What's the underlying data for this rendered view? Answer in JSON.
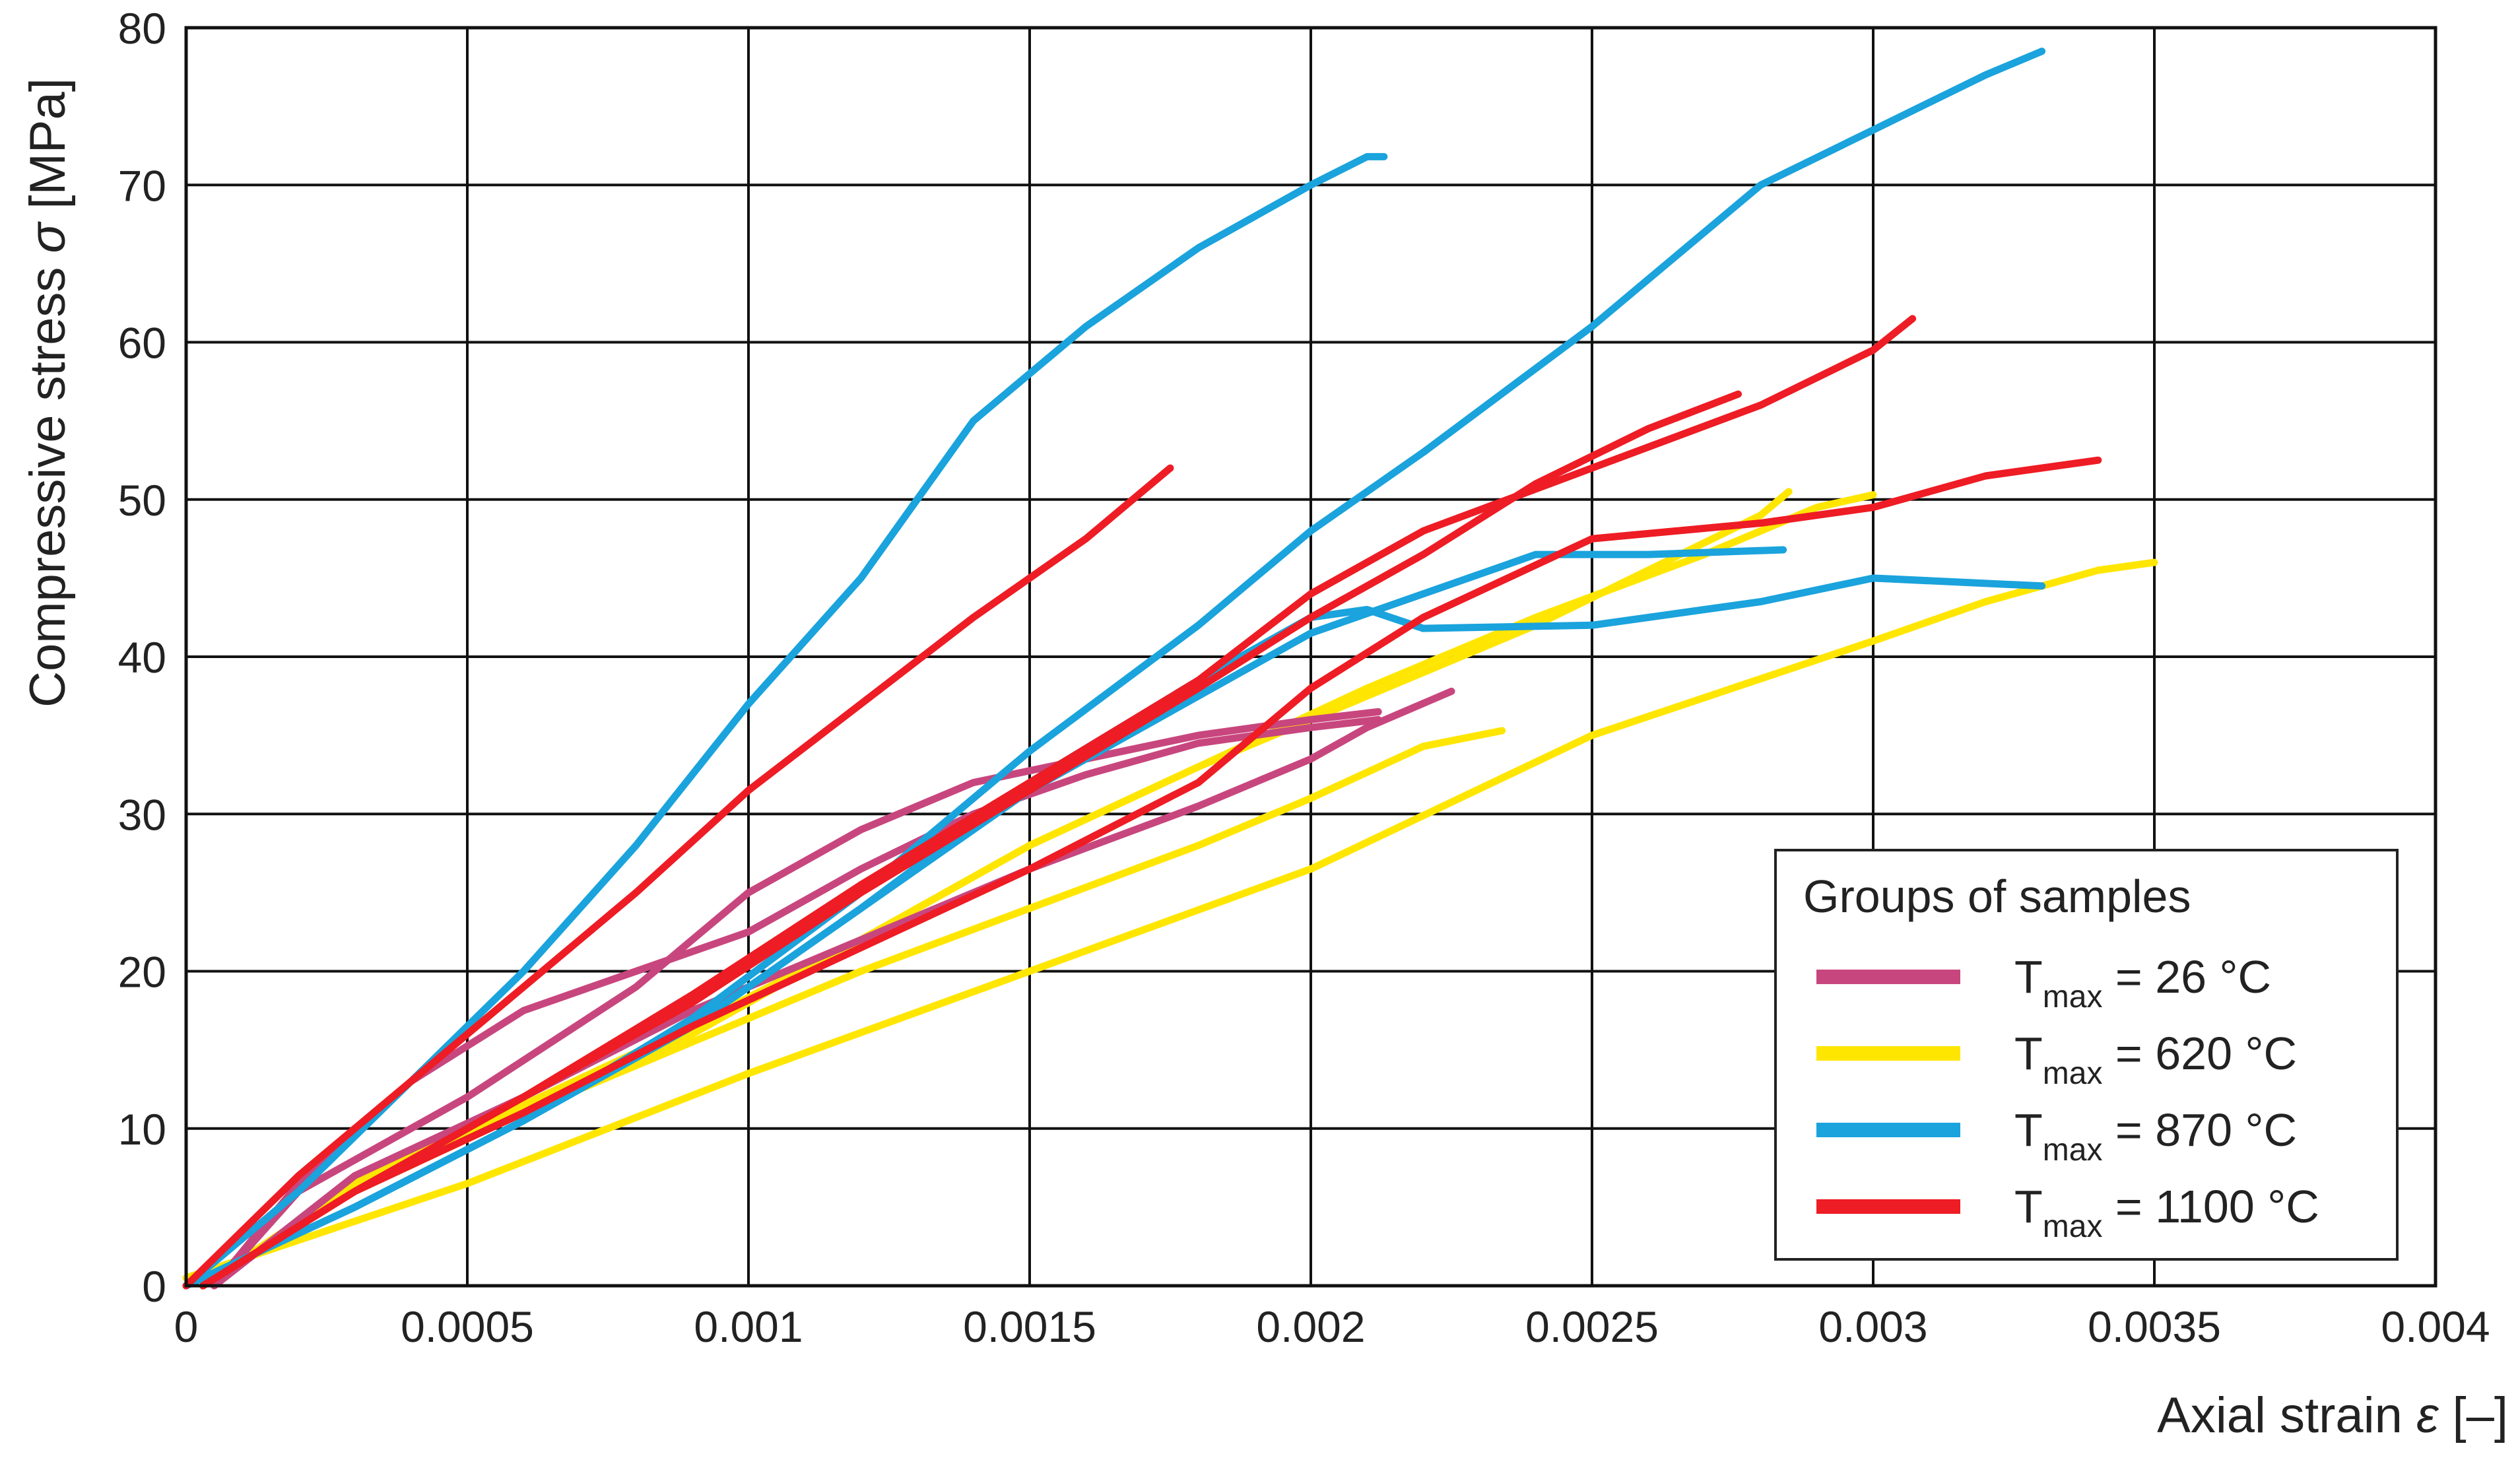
{
  "chart_data": {
    "type": "line",
    "xlabel_text": "Axial strain ",
    "xlabel_symbol": "ε",
    "xlabel_unit": " [–]",
    "ylabel_text": "Compressive stress ",
    "ylabel_symbol": "σ",
    "ylabel_unit": " [MPa]",
    "xlim": [
      0,
      0.004
    ],
    "ylim": [
      0,
      80
    ],
    "x_ticks": [
      0,
      0.0005,
      0.001,
      0.0015,
      0.002,
      0.0025,
      0.003,
      0.0035,
      0.004
    ],
    "x_tick_labels": [
      "0",
      "0.0005",
      "0.001",
      "0.0015",
      "0.002",
      "0.0025",
      "0.003",
      "0.0035",
      "0.004"
    ],
    "y_ticks": [
      0,
      10,
      20,
      30,
      40,
      50,
      60,
      70,
      80
    ],
    "y_tick_labels": [
      "0",
      "10",
      "20",
      "30",
      "40",
      "50",
      "60",
      "70",
      "80"
    ],
    "grid": true,
    "legend": {
      "title": "Groups of samples",
      "placement": "bottom-right",
      "entries": [
        {
          "t": "T",
          "sub": "max",
          "rest": " = 26 °C",
          "color": "#c8467e"
        },
        {
          "t": "T",
          "sub": "max",
          "rest": " = 620 °C",
          "color": "#ffe600"
        },
        {
          "t": "T",
          "sub": "max",
          "rest": " = 870 °C",
          "color": "#1aa3dc"
        },
        {
          "t": "T",
          "sub": "max",
          "rest": " = 1100 °C",
          "color": "#ee1c24"
        }
      ]
    },
    "series": [
      {
        "group": 0,
        "color": "#c8467e",
        "points": [
          [
            5e-05,
            0
          ],
          [
            0.0002,
            6
          ],
          [
            0.0005,
            12
          ],
          [
            0.0008,
            19
          ],
          [
            0.001,
            25
          ],
          [
            0.0012,
            29
          ],
          [
            0.0014,
            32
          ],
          [
            0.0016,
            33.5
          ],
          [
            0.0018,
            35
          ],
          [
            0.002,
            36
          ],
          [
            0.00212,
            36.5
          ]
        ]
      },
      {
        "group": 0,
        "color": "#c8467e",
        "points": [
          [
            5e-05,
            0
          ],
          [
            0.0002,
            6.5
          ],
          [
            0.0004,
            13
          ],
          [
            0.0006,
            17.5
          ],
          [
            0.0008,
            20
          ],
          [
            0.001,
            22.5
          ],
          [
            0.0012,
            26.5
          ],
          [
            0.0014,
            30
          ],
          [
            0.0016,
            32.5
          ],
          [
            0.0018,
            34.5
          ],
          [
            0.002,
            35.5
          ],
          [
            0.00212,
            36
          ]
        ]
      },
      {
        "group": 0,
        "color": "#c8467e",
        "points": [
          [
            5e-05,
            0
          ],
          [
            0.0003,
            7
          ],
          [
            0.0006,
            12
          ],
          [
            0.0009,
            17.5
          ],
          [
            0.0012,
            22
          ],
          [
            0.0015,
            26.5
          ],
          [
            0.0018,
            30.5
          ],
          [
            0.002,
            33.5
          ],
          [
            0.0021,
            35.5
          ],
          [
            0.00225,
            37.8
          ]
        ]
      },
      {
        "group": 1,
        "color": "#ffe600",
        "points": [
          [
            3e-05,
            0
          ],
          [
            0.0003,
            6
          ],
          [
            0.0006,
            11
          ],
          [
            0.0009,
            16
          ],
          [
            0.0012,
            22
          ],
          [
            0.0015,
            28
          ],
          [
            0.0018,
            33
          ],
          [
            0.0021,
            38
          ],
          [
            0.0024,
            42.5
          ],
          [
            0.0027,
            46.5
          ],
          [
            0.0029,
            49.5
          ],
          [
            0.003,
            50.3
          ]
        ]
      },
      {
        "group": 1,
        "color": "#ffe600",
        "points": [
          [
            3e-05,
            0
          ],
          [
            0.0003,
            6.5
          ],
          [
            0.0006,
            11.5
          ],
          [
            0.0009,
            16.5
          ],
          [
            0.0012,
            22
          ],
          [
            0.0015,
            28
          ],
          [
            0.0018,
            33
          ],
          [
            0.0021,
            37.5
          ],
          [
            0.0024,
            42
          ],
          [
            0.0026,
            45.5
          ],
          [
            0.0028,
            49
          ],
          [
            0.00285,
            50.5
          ]
        ]
      },
      {
        "group": 1,
        "color": "#ffe600",
        "points": [
          [
            3e-05,
            0
          ],
          [
            0.0003,
            6.5
          ],
          [
            0.0006,
            11
          ],
          [
            0.0009,
            15.5
          ],
          [
            0.0012,
            20
          ],
          [
            0.0015,
            24
          ],
          [
            0.0018,
            28
          ],
          [
            0.002,
            31
          ],
          [
            0.0022,
            34.3
          ],
          [
            0.00234,
            35.3
          ]
        ]
      },
      {
        "group": 1,
        "color": "#ffe600",
        "points": [
          [
            0,
            0.5
          ],
          [
            0.0005,
            6.5
          ],
          [
            0.001,
            13.5
          ],
          [
            0.0015,
            20
          ],
          [
            0.002,
            26.5
          ],
          [
            0.0025,
            35
          ],
          [
            0.003,
            41
          ],
          [
            0.0032,
            43.5
          ],
          [
            0.0034,
            45.5
          ],
          [
            0.0035,
            46
          ]
        ]
      },
      {
        "group": 2,
        "color": "#1aa3dc",
        "points": [
          [
            0,
            0
          ],
          [
            0.0002,
            6
          ],
          [
            0.0004,
            13
          ],
          [
            0.0006,
            20
          ],
          [
            0.0008,
            28
          ],
          [
            0.001,
            37
          ],
          [
            0.0012,
            45
          ],
          [
            0.0014,
            55
          ],
          [
            0.0016,
            61
          ],
          [
            0.0018,
            66
          ],
          [
            0.002,
            70
          ],
          [
            0.0021,
            71.8
          ],
          [
            0.00213,
            71.8
          ]
        ]
      },
      {
        "group": 2,
        "color": "#1aa3dc",
        "points": [
          [
            0,
            0
          ],
          [
            0.0003,
            5
          ],
          [
            0.0006,
            10.5
          ],
          [
            0.0009,
            17
          ],
          [
            0.0012,
            25
          ],
          [
            0.0015,
            34
          ],
          [
            0.0018,
            42
          ],
          [
            0.002,
            48
          ],
          [
            0.0022,
            53
          ],
          [
            0.0025,
            61
          ],
          [
            0.0028,
            70
          ],
          [
            0.003,
            73.5
          ],
          [
            0.0032,
            77
          ],
          [
            0.0033,
            78.5
          ]
        ]
      },
      {
        "group": 2,
        "color": "#1aa3dc",
        "points": [
          [
            0,
            0
          ],
          [
            0.0003,
            5
          ],
          [
            0.0006,
            10.5
          ],
          [
            0.0009,
            16.5
          ],
          [
            0.0012,
            24
          ],
          [
            0.0015,
            32
          ],
          [
            0.0018,
            38.5
          ],
          [
            0.002,
            42.5
          ],
          [
            0.0021,
            43
          ],
          [
            0.0022,
            41.8
          ],
          [
            0.0025,
            42
          ],
          [
            0.0028,
            43.5
          ],
          [
            0.003,
            45
          ],
          [
            0.0033,
            44.5
          ]
        ]
      },
      {
        "group": 2,
        "color": "#1aa3dc",
        "points": [
          [
            0,
            0
          ],
          [
            0.0003,
            5
          ],
          [
            0.0006,
            10.5
          ],
          [
            0.0009,
            16.5
          ],
          [
            0.0012,
            24
          ],
          [
            0.0015,
            31.5
          ],
          [
            0.0018,
            37.5
          ],
          [
            0.002,
            41.5
          ],
          [
            0.0022,
            44
          ],
          [
            0.0024,
            46.5
          ],
          [
            0.0026,
            46.5
          ],
          [
            0.00284,
            46.8
          ]
        ]
      },
      {
        "group": 3,
        "color": "#ee1c24",
        "points": [
          [
            0,
            0
          ],
          [
            0.0002,
            7
          ],
          [
            0.0004,
            13
          ],
          [
            0.0006,
            19
          ],
          [
            0.0008,
            25
          ],
          [
            0.001,
            31.5
          ],
          [
            0.0012,
            37
          ],
          [
            0.0014,
            42.5
          ],
          [
            0.0016,
            47.5
          ],
          [
            0.00175,
            52
          ]
        ]
      },
      {
        "group": 3,
        "color": "#ee1c24",
        "points": [
          [
            3e-05,
            0
          ],
          [
            0.0003,
            6
          ],
          [
            0.0006,
            12
          ],
          [
            0.0009,
            18.5
          ],
          [
            0.0012,
            25.5
          ],
          [
            0.0015,
            32
          ],
          [
            0.0018,
            38.5
          ],
          [
            0.002,
            44
          ],
          [
            0.0022,
            48
          ],
          [
            0.0025,
            52
          ],
          [
            0.0028,
            56
          ],
          [
            0.003,
            59.5
          ],
          [
            0.00307,
            61.5
          ]
        ]
      },
      {
        "group": 3,
        "color": "#ee1c24",
        "points": [
          [
            3e-05,
            0
          ],
          [
            0.0003,
            6
          ],
          [
            0.0006,
            12
          ],
          [
            0.0009,
            18
          ],
          [
            0.0012,
            25
          ],
          [
            0.0015,
            31.5
          ],
          [
            0.0018,
            38
          ],
          [
            0.002,
            42.5
          ],
          [
            0.0022,
            46.5
          ],
          [
            0.0024,
            51
          ],
          [
            0.0026,
            54.5
          ],
          [
            0.00276,
            56.7
          ]
        ]
      },
      {
        "group": 3,
        "color": "#ee1c24",
        "points": [
          [
            3e-05,
            0
          ],
          [
            0.0003,
            6
          ],
          [
            0.0006,
            11
          ],
          [
            0.0009,
            16.5
          ],
          [
            0.0012,
            21.5
          ],
          [
            0.0015,
            26.5
          ],
          [
            0.0018,
            32
          ],
          [
            0.002,
            38
          ],
          [
            0.0022,
            42.5
          ],
          [
            0.0025,
            47.5
          ],
          [
            0.0028,
            48.5
          ],
          [
            0.003,
            49.5
          ],
          [
            0.0032,
            51.5
          ],
          [
            0.0034,
            52.5
          ]
        ]
      }
    ]
  }
}
